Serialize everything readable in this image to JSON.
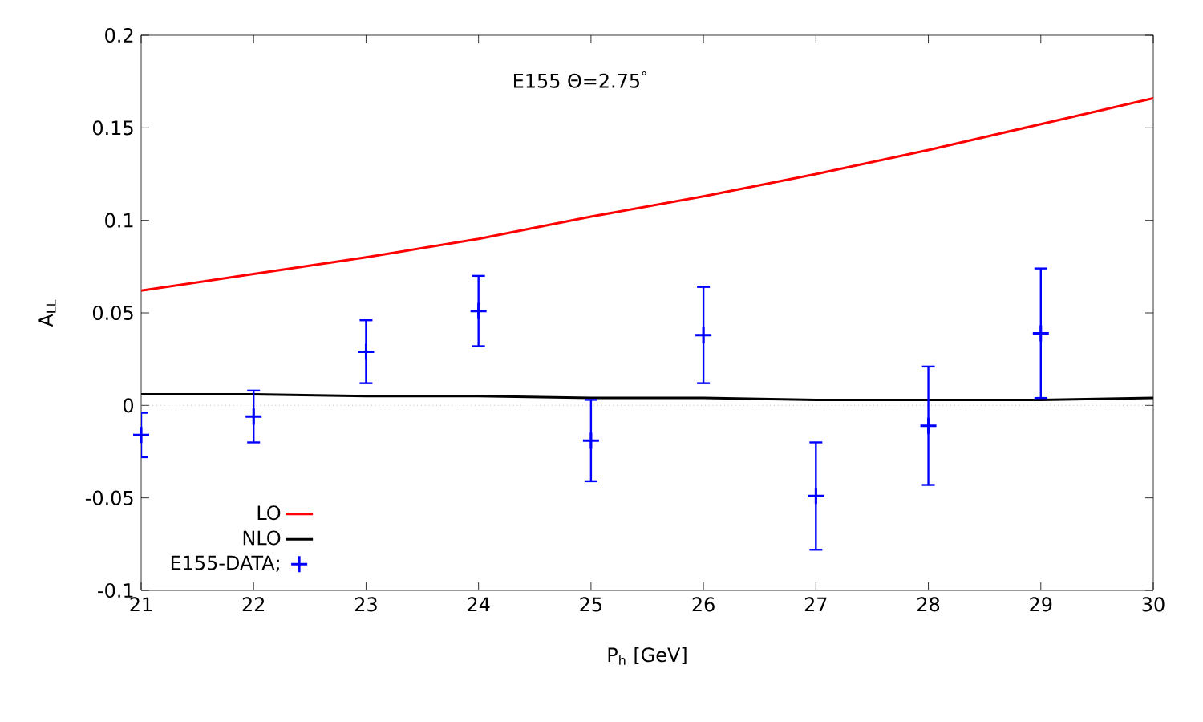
{
  "chart_data": {
    "type": "line",
    "xlabel": "P$_{h}$ [GeV]",
    "ylabel": "A$_{LL}$",
    "annotations": [
      "E155 Θ=2.75$^{°}$"
    ],
    "xlim": [
      21,
      30
    ],
    "ylim": [
      -0.1,
      0.2
    ],
    "xticks": [
      21,
      22,
      23,
      24,
      25,
      26,
      27,
      28,
      29,
      30
    ],
    "yticks": [
      -0.1,
      -0.05,
      0,
      0.05,
      0.1,
      0.15,
      0.2
    ],
    "grid": false,
    "legend": "bottom left",
    "ref_lines": [
      {
        "axis": "y",
        "value": 0,
        "color": "#a0a0a0",
        "line_style": "dotted"
      }
    ],
    "series": [
      {
        "name": "LO",
        "color": "#ff0000",
        "marker": "none",
        "line_style": "solid",
        "x": [
          21,
          22,
          23,
          24,
          25,
          26,
          27,
          28,
          29,
          30
        ],
        "values": [
          0.062,
          0.071,
          0.08,
          0.09,
          0.102,
          0.113,
          0.125,
          0.138,
          0.152,
          0.166
        ]
      },
      {
        "name": "NLO",
        "color": "#000000",
        "marker": "none",
        "line_style": "solid",
        "x": [
          21,
          22,
          23,
          24,
          25,
          26,
          27,
          28,
          29,
          30
        ],
        "values": [
          0.006,
          0.006,
          0.005,
          0.005,
          0.004,
          0.004,
          0.003,
          0.003,
          0.003,
          0.004
        ]
      },
      {
        "name": "E155-DATA;",
        "type": "scatter",
        "color": "#0000ff",
        "marker": "cross",
        "x": [
          21,
          22,
          23,
          24,
          25,
          26,
          27,
          28,
          29
        ],
        "values": [
          -0.016,
          -0.006,
          0.029,
          0.051,
          -0.019,
          0.038,
          -0.049,
          -0.011,
          0.039
        ],
        "errors": [
          0.012,
          0.014,
          0.017,
          0.019,
          0.022,
          0.026,
          0.029,
          0.032,
          0.035
        ]
      }
    ]
  }
}
